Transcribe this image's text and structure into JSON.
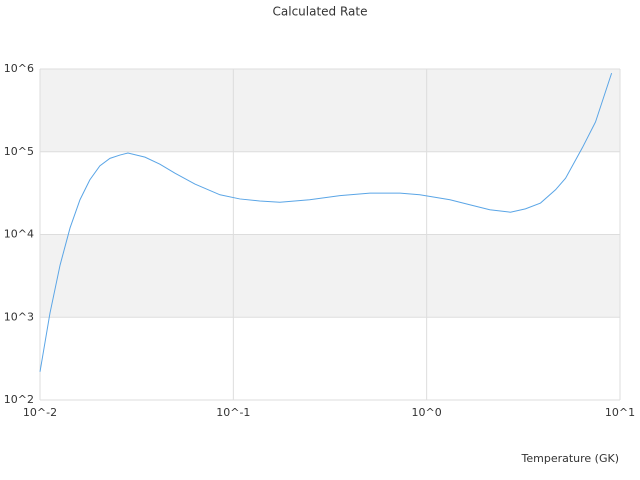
{
  "chart_data": {
    "type": "line",
    "title": "Calculated Rate",
    "x_label": "Temperature (GK)",
    "x": [
      0.01,
      0.01126,
      0.0127,
      0.0143,
      0.0161,
      0.0181,
      0.0204,
      0.023,
      0.0259,
      0.0285,
      0.0349,
      0.0417,
      0.0499,
      0.0633,
      0.0853,
      0.108,
      0.137,
      0.174,
      0.248,
      0.356,
      0.509,
      0.728,
      0.921,
      1.32,
      1.67,
      2.12,
      2.71,
      3.24,
      3.88,
      4.64,
      5.23,
      6.39,
      7.47,
      9.05
    ],
    "series": [
      {
        "color": "#5aa5e6",
        "values": [
          219,
          1120,
          4270,
          12000,
          26300,
          45700,
          67600,
          83200,
          91200,
          96600,
          86100,
          70800,
          55000,
          40700,
          30200,
          26900,
          25400,
          24500,
          26300,
          29500,
          31600,
          31600,
          30200,
          26300,
          22900,
          19900,
          18600,
          20400,
          24000,
          34700,
          47900,
          112000,
          229000,
          891000
        ]
      }
    ],
    "xlim": [
      0.01,
      10
    ],
    "ylim": [
      100,
      1000000
    ],
    "log_x": true,
    "log_y": true,
    "xticks": [
      {
        "value": 0.01,
        "label": "10^-2"
      },
      {
        "value": 0.1,
        "label": "10^-1"
      },
      {
        "value": 1,
        "label": "10^0"
      },
      {
        "value": 10,
        "label": "10^1"
      }
    ],
    "yticks": [
      {
        "value": 100,
        "label": "10^2"
      },
      {
        "value": 1000,
        "label": "10^3"
      },
      {
        "value": 10000,
        "label": "10^4"
      },
      {
        "value": 100000,
        "label": "10^5"
      },
      {
        "value": 1000000,
        "label": "10^6"
      }
    ],
    "grid": true
  }
}
